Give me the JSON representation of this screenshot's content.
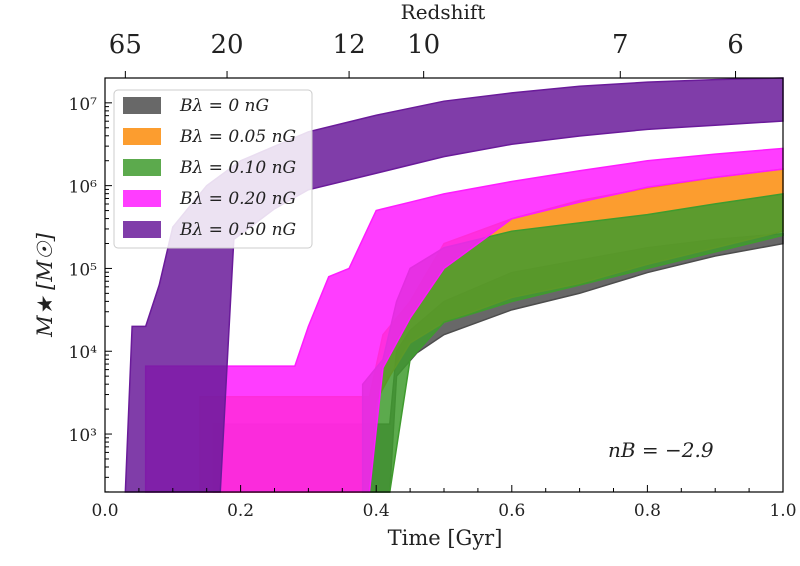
{
  "chart_data": {
    "type": "area",
    "xlabel": "Time [Gyr]",
    "ylabel": "M★ [M☉]",
    "x_ticks": [
      "0.0",
      "0.2",
      "0.4",
      "0.6",
      "0.8",
      "1.0"
    ],
    "y_ticks": [
      "10³",
      "10⁴",
      "10⁵",
      "10⁶",
      "10⁷"
    ],
    "top_axis": {
      "label": "Redshift",
      "ticks": [
        {
          "label": "65",
          "time": 0.03
        },
        {
          "label": "20",
          "time": 0.18
        },
        {
          "label": "12",
          "time": 0.36
        },
        {
          "label": "10",
          "time": 0.47
        },
        {
          "label": "7",
          "time": 0.76
        },
        {
          "label": "6",
          "time": 0.93
        }
      ]
    },
    "xlim": [
      0.0,
      1.0
    ],
    "ylim_log10": [
      2.3,
      7.3
    ],
    "annotation": "nB = −2.9",
    "legend_position": "upper-left",
    "series": [
      {
        "name": "Bλ = 0 nG",
        "color": "#4d4d4d",
        "upper": [
          [
            0.16,
            3.12
          ],
          [
            0.42,
            3.12
          ],
          [
            0.43,
            4.0
          ],
          [
            0.45,
            4.25
          ],
          [
            0.5,
            4.6
          ],
          [
            0.6,
            4.95
          ],
          [
            0.7,
            5.1
          ],
          [
            0.8,
            5.25
          ],
          [
            0.9,
            5.35
          ],
          [
            1.0,
            5.42
          ]
        ],
        "lower": [
          [
            0.16,
            2.3
          ],
          [
            0.42,
            2.3
          ],
          [
            0.43,
            3.7
          ],
          [
            0.46,
            3.98
          ],
          [
            0.5,
            4.2
          ],
          [
            0.6,
            4.5
          ],
          [
            0.7,
            4.7
          ],
          [
            0.8,
            4.95
          ],
          [
            0.9,
            5.15
          ],
          [
            1.0,
            5.3
          ]
        ]
      },
      {
        "name": "Bλ = 0.05 nG",
        "color": "#fb8c0a",
        "upper": [
          [
            0.14,
            3.45
          ],
          [
            0.39,
            3.45
          ],
          [
            0.41,
            4.2
          ],
          [
            0.45,
            4.6
          ],
          [
            0.5,
            5.3
          ],
          [
            0.6,
            5.6
          ],
          [
            0.7,
            5.82
          ],
          [
            0.8,
            5.97
          ],
          [
            0.9,
            6.1
          ],
          [
            1.0,
            6.2
          ]
        ],
        "lower": [
          [
            0.14,
            2.3
          ],
          [
            0.39,
            2.3
          ],
          [
            0.4,
            3.4
          ],
          [
            0.42,
            3.7
          ],
          [
            0.45,
            4.1
          ],
          [
            0.5,
            4.35
          ],
          [
            0.6,
            4.65
          ],
          [
            0.7,
            4.82
          ],
          [
            0.8,
            5.05
          ],
          [
            0.9,
            5.25
          ],
          [
            1.0,
            5.45
          ]
        ]
      },
      {
        "name": "Bλ = 0.10 nG",
        "color": "#3f9b2e",
        "upper": [
          [
            0.38,
            3.6
          ],
          [
            0.41,
            3.9
          ],
          [
            0.43,
            4.6
          ],
          [
            0.45,
            5.0
          ],
          [
            0.5,
            5.25
          ],
          [
            0.6,
            5.45
          ],
          [
            0.7,
            5.55
          ],
          [
            0.8,
            5.65
          ],
          [
            0.9,
            5.78
          ],
          [
            1.0,
            5.9
          ]
        ],
        "lower": [
          [
            0.38,
            2.3
          ],
          [
            0.42,
            2.3
          ],
          [
            0.45,
            3.9
          ],
          [
            0.5,
            4.35
          ],
          [
            0.6,
            4.6
          ],
          [
            0.7,
            4.8
          ],
          [
            0.8,
            5.0
          ],
          [
            0.9,
            5.2
          ],
          [
            1.0,
            5.4
          ]
        ]
      },
      {
        "name": "Bλ = 0.20 nG",
        "color": "#ff1bff",
        "upper": [
          [
            0.06,
            3.82
          ],
          [
            0.28,
            3.82
          ],
          [
            0.3,
            4.3
          ],
          [
            0.33,
            4.9
          ],
          [
            0.36,
            5.0
          ],
          [
            0.4,
            5.7
          ],
          [
            0.45,
            5.8
          ],
          [
            0.5,
            5.9
          ],
          [
            0.6,
            6.05
          ],
          [
            0.7,
            6.18
          ],
          [
            0.8,
            6.3
          ],
          [
            0.9,
            6.38
          ],
          [
            1.0,
            6.45
          ]
        ],
        "lower": [
          [
            0.06,
            2.3
          ],
          [
            0.39,
            2.3
          ],
          [
            0.41,
            3.8
          ],
          [
            0.45,
            4.4
          ],
          [
            0.5,
            5.0
          ],
          [
            0.6,
            5.6
          ],
          [
            0.7,
            5.8
          ],
          [
            0.8,
            5.98
          ],
          [
            0.9,
            6.1
          ],
          [
            1.0,
            6.2
          ]
        ]
      },
      {
        "name": "Bλ = 0.50 nG",
        "color": "#6a1b9a",
        "upper": [
          [
            0.04,
            4.3
          ],
          [
            0.06,
            4.3
          ],
          [
            0.08,
            4.8
          ],
          [
            0.1,
            5.5
          ],
          [
            0.15,
            6.0
          ],
          [
            0.2,
            6.3
          ],
          [
            0.3,
            6.65
          ],
          [
            0.4,
            6.85
          ],
          [
            0.5,
            7.02
          ],
          [
            0.6,
            7.12
          ],
          [
            0.7,
            7.2
          ],
          [
            0.8,
            7.25
          ],
          [
            0.9,
            7.28
          ],
          [
            1.0,
            7.3
          ]
        ],
        "lower": [
          [
            0.03,
            2.3
          ],
          [
            0.17,
            2.3
          ],
          [
            0.19,
            5.35
          ],
          [
            0.25,
            5.72
          ],
          [
            0.3,
            5.95
          ],
          [
            0.4,
            6.15
          ],
          [
            0.5,
            6.35
          ],
          [
            0.6,
            6.5
          ],
          [
            0.7,
            6.6
          ],
          [
            0.8,
            6.68
          ],
          [
            0.9,
            6.73
          ],
          [
            1.0,
            6.78
          ]
        ]
      }
    ]
  }
}
